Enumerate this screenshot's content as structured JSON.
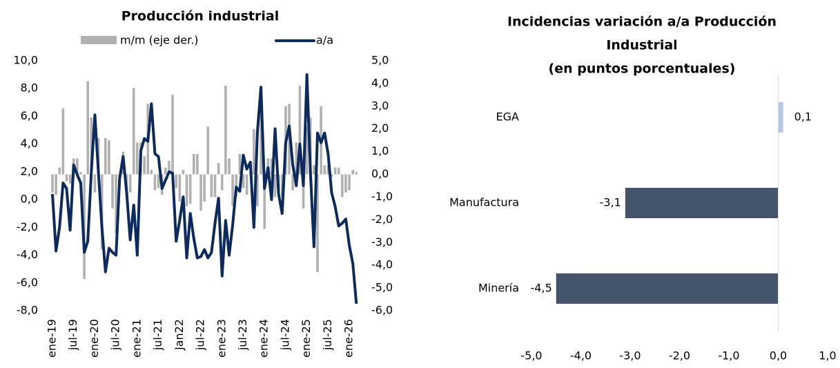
{
  "chart_data": [
    {
      "type": "combo",
      "title": "Producción industrial",
      "legend": "top",
      "categories": [
        "ene-19",
        null,
        null,
        null,
        null,
        null,
        "jul-19",
        null,
        null,
        null,
        null,
        null,
        "ene-20",
        null,
        null,
        null,
        null,
        null,
        "jul-20",
        null,
        null,
        null,
        null,
        null,
        "ene-21",
        null,
        null,
        null,
        null,
        null,
        "jul-21",
        null,
        null,
        null,
        null,
        null,
        "Jan22",
        null,
        null,
        null,
        null,
        null,
        "jul-22",
        null,
        null,
        null,
        null,
        null,
        "ene-23",
        null,
        null,
        null,
        null,
        null,
        "jul-23",
        null,
        null,
        null,
        null,
        null,
        "ene-24",
        null,
        null,
        null,
        null,
        null,
        "jul-24",
        null,
        null,
        null,
        null,
        null,
        "ene-25",
        null,
        null,
        null,
        null,
        null,
        "jul-25",
        null,
        null,
        null,
        null,
        null,
        "ene-26",
        null,
        null
      ],
      "series": [
        {
          "name": "m/m (eje der.)",
          "type": "bar",
          "axis": "y2",
          "color": "#b0b0b0",
          "values": [
            -0.8,
            -0.9,
            0.3,
            2.9,
            -0.3,
            -0.4,
            0.7,
            0.7,
            0.1,
            -4.6,
            4.1,
            2.5,
            -0.8,
            1.6,
            -3.3,
            1.6,
            1.5,
            -1.5,
            -2.6,
            -0.4,
            1.0,
            -0.7,
            -0.8,
            3.8,
            1.4,
            1.4,
            0.8,
            3.1,
            0.2,
            -0.7,
            -0.6,
            -0.9,
            0.3,
            0.6,
            3.5,
            -0.6,
            -1.2,
            0.2,
            -1.4,
            -1.3,
            0.9,
            0.9,
            -1.6,
            -1.2,
            2.1,
            -1.0,
            -1.0,
            0.5,
            -0.7,
            3.9,
            0.7,
            -1.4,
            -1.0,
            0.9,
            -0.6,
            -0.9,
            0.1,
            2.0,
            -1.4,
            3.0,
            -2.4,
            0.7,
            0.7,
            -1.0,
            -0.7,
            -1.0,
            3.0,
            3.1,
            -0.7,
            1.4,
            3.9,
            -1.5,
            2.1,
            2.5,
            0.4,
            -4.3,
            3.0,
            0.4,
            0.4,
            -0.1,
            0.3,
            0.3,
            -1.0,
            -0.8,
            -0.7,
            0.2,
            0.1
          ]
        },
        {
          "name": "a/a",
          "type": "line",
          "color": "#0d2a5e",
          "values": [
            0.4,
            -3.7,
            -2.0,
            1.2,
            0.8,
            -2.2,
            2.5,
            1.8,
            1.2,
            -3.8,
            -3.0,
            2.0,
            6.1,
            2.0,
            -2.0,
            -5.2,
            -3.5,
            -3.8,
            -4.0,
            1.5,
            3.1,
            0.5,
            -2.9,
            -0.4,
            -4.0,
            3.5,
            4.4,
            4.2,
            6.9,
            3.3,
            3.1,
            0.8,
            1.4,
            2.0,
            1.9,
            -3.0,
            -1.5,
            0.2,
            -4.2,
            -1.0,
            -2.8,
            -4.2,
            -4.1,
            -3.6,
            -4.2,
            -3.8,
            -1.7,
            0.1,
            -5.5,
            -1.5,
            -4.0,
            -1.8,
            0.9,
            0.6,
            3.2,
            2.2,
            2.7,
            -2.0,
            4.9,
            8.1,
            0.8,
            2.3,
            0.0,
            5.1,
            0.4,
            -1.0,
            4.1,
            5.3,
            2.5,
            1.0,
            4.0,
            1.0,
            9.0,
            2.0,
            -3.4,
            4.8,
            4.1,
            4.8,
            3.3,
            0.5,
            -0.5,
            -1.9,
            -1.7,
            -1.4,
            -3.3,
            -4.6,
            -7.5
          ]
        }
      ],
      "ylim": [
        -8,
        10
      ],
      "yticks": [
        {
          "value": -8,
          "label": "-8,0"
        },
        {
          "value": -6,
          "label": "-6,0"
        },
        {
          "value": -4,
          "label": "-4,0"
        },
        {
          "value": -2,
          "label": "-2,0"
        },
        {
          "value": 0,
          "label": "0,0"
        },
        {
          "value": 2,
          "label": "2,0"
        },
        {
          "value": 4,
          "label": "4,0"
        },
        {
          "value": 6,
          "label": "6,0"
        },
        {
          "value": 8,
          "label": "8,0"
        },
        {
          "value": 10,
          "label": "10,0"
        }
      ],
      "y2lim": [
        -6,
        5
      ],
      "y2ticks": [
        {
          "value": -6,
          "label": "-6,0"
        },
        {
          "value": -5,
          "label": "-5,0"
        },
        {
          "value": -4,
          "label": "-4,0"
        },
        {
          "value": -3,
          "label": "-3,0"
        },
        {
          "value": -2,
          "label": "-2,0"
        },
        {
          "value": -1,
          "label": "-1,0"
        },
        {
          "value": 0,
          "label": "0,0"
        },
        {
          "value": 1,
          "label": "1,0"
        },
        {
          "value": 2,
          "label": "2,0"
        },
        {
          "value": 3,
          "label": "3,0"
        },
        {
          "value": 4,
          "label": "4,0"
        },
        {
          "value": 5,
          "label": "5,0"
        }
      ]
    },
    {
      "type": "hbar",
      "title": [
        "Incidencias variación a/a Producción",
        "Industrial",
        "(en puntos porcentuales)"
      ],
      "categories": [
        "EGA",
        "Manufactura",
        "Minería"
      ],
      "values": [
        0.1,
        -3.1,
        -4.5
      ],
      "value_labels": [
        "0,1",
        "-3,1",
        "-4,5"
      ],
      "colors": [
        "#b4c7e7",
        "#44546a",
        "#44546a"
      ],
      "xlim": [
        -5,
        1
      ],
      "xticks": [
        {
          "value": -5,
          "label": "-5,0"
        },
        {
          "value": -4,
          "label": "-4,0"
        },
        {
          "value": -3,
          "label": "-3,0"
        },
        {
          "value": -2,
          "label": "-2,0"
        },
        {
          "value": -1,
          "label": "-1,0"
        },
        {
          "value": 0,
          "label": "0,0"
        },
        {
          "value": 1,
          "label": "1,0"
        }
      ]
    }
  ]
}
